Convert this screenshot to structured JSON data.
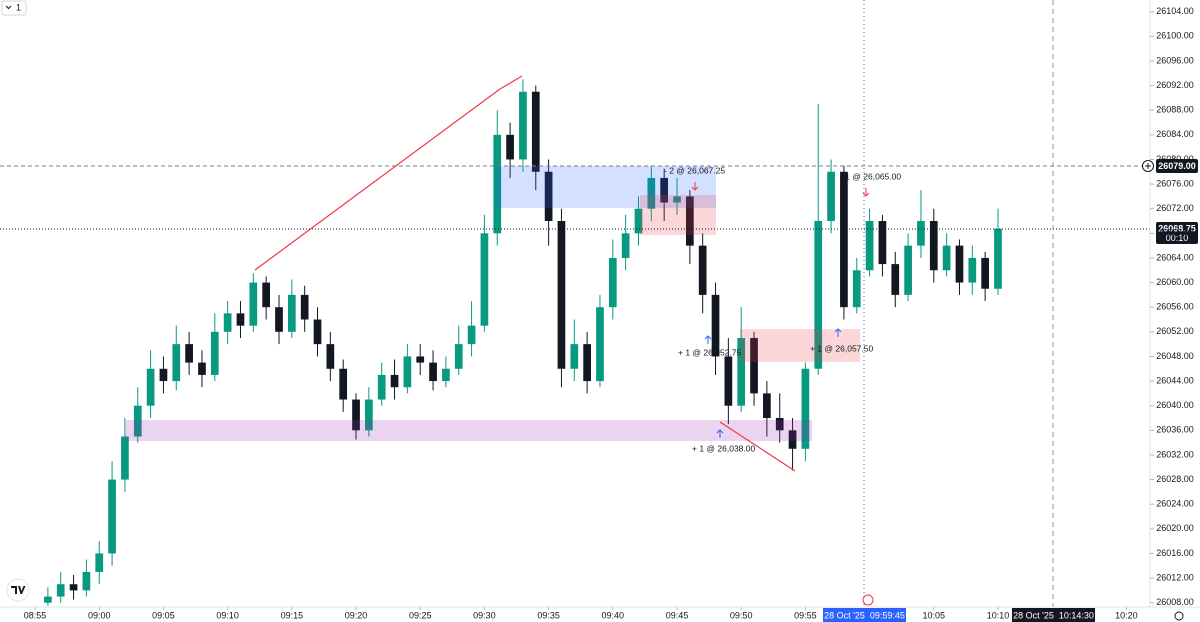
{
  "chart_data": {
    "type": "candlestick",
    "interval": "1",
    "x": [
      1,
      2,
      3,
      4,
      5,
      6,
      7,
      8,
      9,
      10,
      11,
      12,
      13,
      14,
      15,
      16,
      17,
      18,
      19,
      20,
      21,
      22,
      23,
      24,
      25,
      26,
      27,
      28,
      29,
      30,
      31,
      32,
      33,
      34,
      35,
      36,
      37,
      38,
      39,
      40,
      41,
      42,
      43,
      44,
      45,
      46,
      47,
      48,
      49,
      50,
      51,
      52,
      53,
      54,
      55,
      56,
      57,
      58,
      59,
      60,
      61,
      62,
      63,
      64,
      65,
      66,
      67,
      68,
      69,
      70,
      71,
      72,
      73,
      74,
      75
    ],
    "open": [
      26008,
      26009,
      26011,
      26010,
      26013,
      26016,
      26028,
      26035,
      26040,
      26046,
      26044,
      26050,
      26047,
      26045,
      26052,
      26055,
      26053,
      26060,
      26056,
      26052,
      26058,
      26054,
      26050,
      26046,
      26041,
      26036,
      26041,
      26045,
      26043,
      26048,
      26047,
      26044,
      26046,
      26050,
      26053,
      26068,
      26084,
      26080,
      26091,
      26078,
      26070,
      26046,
      26050,
      26044,
      26056,
      26064,
      26068,
      26072,
      26077,
      26073,
      26074,
      26066,
      26058,
      26048,
      26040,
      26051,
      26042,
      26038,
      26036,
      26033,
      26046,
      26070,
      26078,
      26056,
      26062,
      26070,
      26063,
      26058,
      26066,
      26070,
      26062,
      26066,
      26060,
      26064,
      26059
    ],
    "high": [
      26010.5,
      26013,
      26012.5,
      26015,
      26018,
      26031,
      26038,
      26043,
      26049,
      26048,
      26053,
      26052,
      26049,
      26055,
      26057,
      26057,
      26061.5,
      26061,
      26058,
      26060.5,
      26059.5,
      26056,
      26052,
      26047.5,
      26042,
      26043,
      26047,
      26047.5,
      26050,
      26050,
      26049,
      26048,
      26053,
      26057,
      26071,
      26088,
      26086,
      26093,
      26092,
      26080,
      26072,
      26054,
      26052,
      26058,
      26067,
      26071,
      26074,
      26079,
      26078.5,
      26077,
      26075,
      26068,
      26060,
      26051,
      26056,
      26052,
      26044,
      26042,
      26038,
      26047,
      26089,
      26080,
      26079,
      26064,
      26072,
      26071,
      26065,
      26068,
      26075,
      26072,
      26068,
      26067,
      26066,
      26065,
      26072
    ],
    "low": [
      26007.5,
      26008,
      26008.5,
      26009,
      26011,
      26014,
      26026,
      26034,
      26038,
      26042,
      26042.5,
      26045,
      26043,
      26044,
      26050,
      26051,
      26052,
      26054,
      26050,
      26051,
      26052,
      26048,
      26044,
      26039,
      26034.5,
      26035,
      26040,
      26041,
      26042,
      26045,
      26042.5,
      26043,
      26045,
      26048,
      26052,
      26066,
      26077,
      26078,
      26075,
      26066,
      26043,
      26044,
      26042,
      26043,
      26054,
      26062,
      26066,
      26070,
      26070,
      26071,
      26063,
      26055,
      26045,
      26037,
      26039,
      26040,
      26035,
      26034,
      26029.5,
      26031,
      26045,
      26068,
      26054,
      26055,
      26061,
      26061,
      26056,
      26057,
      26064,
      26060,
      26061,
      26058,
      26058,
      26057,
      26058
    ],
    "close": [
      26009,
      26011,
      26010,
      26013,
      26016,
      26028,
      26035,
      26040,
      26046,
      26044,
      26050,
      26047,
      26045,
      26052,
      26055,
      26053,
      26060,
      26056,
      26052,
      26058,
      26054,
      26050,
      26046,
      26041,
      26036,
      26041,
      26045,
      26043,
      26048,
      26047,
      26044,
      26046,
      26050,
      26053,
      26068,
      26084,
      26080,
      26091,
      26078,
      26070,
      26046,
      26050,
      26044,
      26056,
      26064,
      26068,
      26072,
      26077,
      26073,
      26074,
      26066,
      26058,
      26048,
      26040,
      26051,
      26042,
      26038,
      26036,
      26033,
      26046,
      26070,
      26078,
      26056,
      26062,
      26070,
      26063,
      26058,
      26066,
      26070,
      26062,
      26066,
      26060,
      26064,
      26059,
      26068.75
    ],
    "up_color": "#089981",
    "down_color": "#131722",
    "xlim": [
      -2.73,
      86.84
    ],
    "xticks": [
      {
        "value": 0,
        "label": "08:55"
      },
      {
        "value": 5,
        "label": "09:00"
      },
      {
        "value": 10,
        "label": "09:05"
      },
      {
        "value": 15,
        "label": "09:10"
      },
      {
        "value": 20,
        "label": "09:15"
      },
      {
        "value": 25,
        "label": "09:20"
      },
      {
        "value": 30,
        "label": "09:25"
      },
      {
        "value": 35,
        "label": "09:30"
      },
      {
        "value": 40,
        "label": "09:35"
      },
      {
        "value": 45,
        "label": "09:40"
      },
      {
        "value": 50,
        "label": "09:45"
      },
      {
        "value": 55,
        "label": "09:50"
      },
      {
        "value": 60,
        "label": "09:55"
      },
      {
        "value": 70,
        "label": "10:05"
      },
      {
        "value": 75,
        "label": "10:10"
      },
      {
        "value": 85,
        "label": "10:20"
      }
    ],
    "ylim": [
      26007.3,
      26105.9
    ],
    "yticks": [
      {
        "value": 26008,
        "label": "26008.00"
      },
      {
        "value": 26012,
        "label": "26012.00"
      },
      {
        "value": 26016,
        "label": "26016.00"
      },
      {
        "value": 26020,
        "label": "26020.00"
      },
      {
        "value": 26024,
        "label": "26024.00"
      },
      {
        "value": 26028,
        "label": "26028.00"
      },
      {
        "value": 26032,
        "label": "26032.00"
      },
      {
        "value": 26036,
        "label": "26036.00"
      },
      {
        "value": 26040,
        "label": "26040.00"
      },
      {
        "value": 26044,
        "label": "26044.00"
      },
      {
        "value": 26048,
        "label": "26048.00"
      },
      {
        "value": 26052,
        "label": "26052.00"
      },
      {
        "value": 26056,
        "label": "26056.00"
      },
      {
        "value": 26060,
        "label": "26060.00"
      },
      {
        "value": 26064,
        "label": "26064.00"
      },
      {
        "value": 26068,
        "label": "26068.00"
      },
      {
        "value": 26072,
        "label": "26072.00"
      },
      {
        "value": 26076,
        "label": "26076.00"
      },
      {
        "value": 26080,
        "label": "26080.00"
      },
      {
        "value": 26084,
        "label": "26084.00"
      },
      {
        "value": 26088,
        "label": "26088.00"
      },
      {
        "value": 26092,
        "label": "26092.00"
      },
      {
        "value": 26096,
        "label": "26096.00"
      },
      {
        "value": 26100,
        "label": "26100.00"
      },
      {
        "value": 26104,
        "label": "26104.00"
      }
    ],
    "crosshair_price": "26079.00",
    "last_price": "26068.75",
    "countdown": "00:10",
    "crosshair_time": "28 Oct '25  09:59:45",
    "end_time": "28 Oct '25  10:14:30",
    "trades": [
      "- 2 @ 26,067.25",
      "+ 1 @ 26,052.75",
      "+ 1 @ 26,038.00",
      "+ 1 @ 26,057.50",
      "- 1 @ 26,065.00"
    ]
  }
}
